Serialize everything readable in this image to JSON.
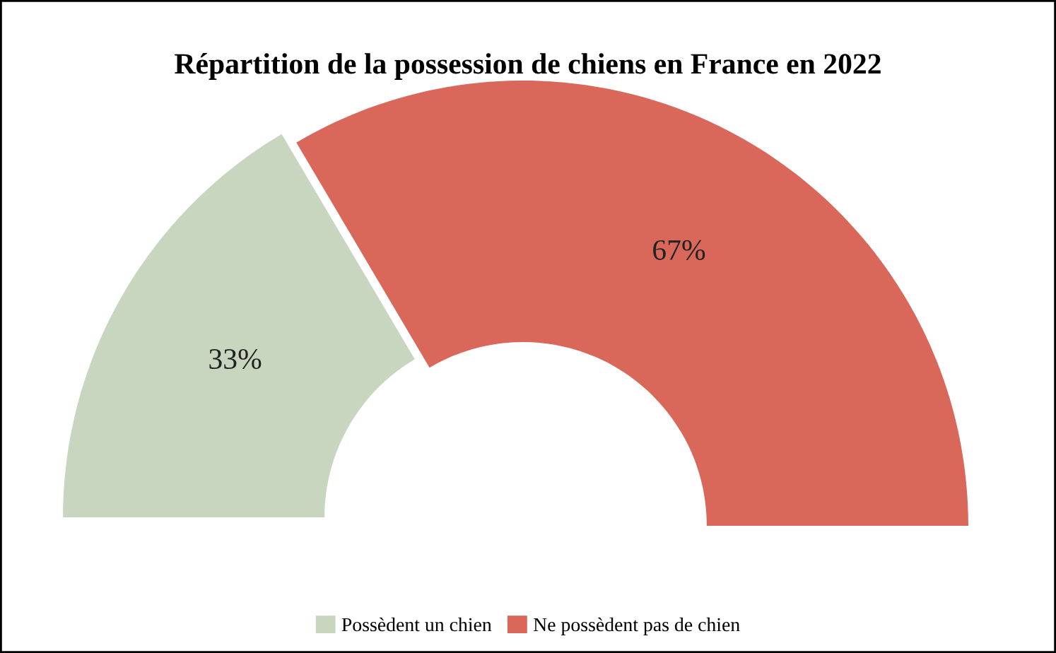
{
  "chart_data": {
    "type": "donut",
    "title": "Répartition de la possession de chiens en France en 2022",
    "categories": [
      "Possèdent un chien",
      "Ne possèdent pas de chien"
    ],
    "values": [
      33,
      67
    ],
    "colors": [
      "#c8d5bf",
      "#d9675a"
    ],
    "value_labels": [
      "33%",
      "67%"
    ],
    "legend": "bottom"
  }
}
